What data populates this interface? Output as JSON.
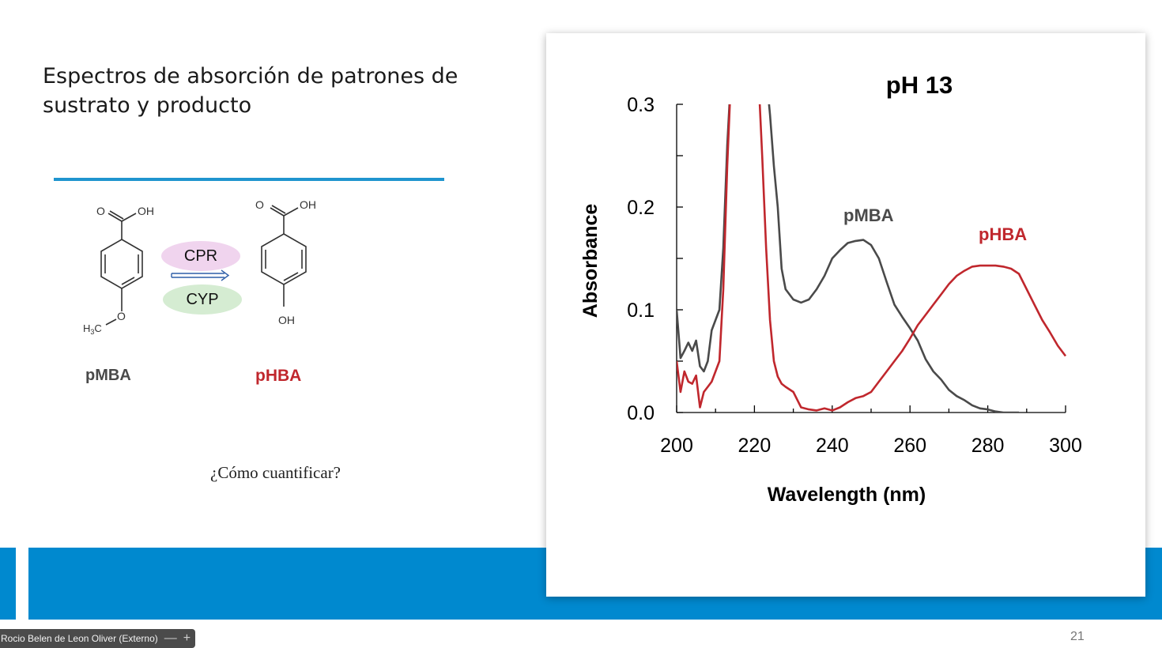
{
  "slide": {
    "title_line1": "Espectros de absorción de patrones de",
    "title_line2": "sustrato y producto",
    "page_number": "21",
    "author": "Rocio Belen de Leon Oliver (Externo)",
    "accent_color": "#0089cf"
  },
  "scheme": {
    "enzyme_top": "CPR",
    "enzyme_bottom": "CYP",
    "substrate_label": "pMBA",
    "product_label": "pHBA",
    "substrate_oh": "OH",
    "substrate_o": "O",
    "substrate_ome_o": "O",
    "product_oh_top": "OH",
    "product_o": "O",
    "product_oh_bottom": "OH",
    "question": "¿Cómo cuantificar?"
  },
  "chart_data": {
    "type": "line",
    "title": "pH 13",
    "xlabel": "Wavelength (nm)",
    "ylabel": "Absorbance",
    "xlim": [
      200,
      300
    ],
    "ylim": [
      0,
      0.3
    ],
    "x_ticks": [
      "200",
      "220",
      "240",
      "260",
      "280",
      "300"
    ],
    "y_ticks": [
      "0.0",
      "0.1",
      "0.2",
      "0.3"
    ],
    "series": [
      {
        "name": "pMBA",
        "color": "#4a4a4a",
        "points": [
          [
            200,
            0.1
          ],
          [
            201,
            0.053
          ],
          [
            202,
            0.06
          ],
          [
            203,
            0.068
          ],
          [
            204,
            0.06
          ],
          [
            205,
            0.07
          ],
          [
            206,
            0.045
          ],
          [
            207,
            0.04
          ],
          [
            208,
            0.05
          ],
          [
            209,
            0.08
          ],
          [
            210,
            0.09
          ],
          [
            211,
            0.1
          ],
          [
            212,
            0.16
          ],
          [
            213,
            0.26
          ],
          [
            214,
            0.33
          ],
          [
            223,
            0.33
          ],
          [
            224,
            0.29
          ],
          [
            225,
            0.24
          ],
          [
            226,
            0.2
          ],
          [
            227,
            0.14
          ],
          [
            228,
            0.12
          ],
          [
            229,
            0.115
          ],
          [
            230,
            0.11
          ],
          [
            232,
            0.107
          ],
          [
            234,
            0.11
          ],
          [
            236,
            0.12
          ],
          [
            238,
            0.133
          ],
          [
            240,
            0.15
          ],
          [
            242,
            0.158
          ],
          [
            244,
            0.165
          ],
          [
            246,
            0.167
          ],
          [
            248,
            0.168
          ],
          [
            250,
            0.163
          ],
          [
            252,
            0.15
          ],
          [
            254,
            0.127
          ],
          [
            256,
            0.105
          ],
          [
            258,
            0.093
          ],
          [
            260,
            0.082
          ],
          [
            262,
            0.07
          ],
          [
            264,
            0.052
          ],
          [
            266,
            0.04
          ],
          [
            268,
            0.032
          ],
          [
            270,
            0.022
          ],
          [
            272,
            0.016
          ],
          [
            274,
            0.012
          ],
          [
            276,
            0.007
          ],
          [
            278,
            0.004
          ],
          [
            280,
            0.003
          ],
          [
            282,
            0.001
          ],
          [
            284,
            0.0
          ],
          [
            286,
            0.0
          ],
          [
            288,
            0.0
          ]
        ]
      },
      {
        "name": "pHBA",
        "color": "#c0272d",
        "points": [
          [
            200,
            0.05
          ],
          [
            201,
            0.02
          ],
          [
            202,
            0.04
          ],
          [
            203,
            0.03
          ],
          [
            204,
            0.028
          ],
          [
            205,
            0.036
          ],
          [
            206,
            0.005
          ],
          [
            207,
            0.02
          ],
          [
            208,
            0.025
          ],
          [
            209,
            0.03
          ],
          [
            210,
            0.04
          ],
          [
            211,
            0.05
          ],
          [
            212,
            0.12
          ],
          [
            213,
            0.24
          ],
          [
            214,
            0.33
          ],
          [
            221,
            0.33
          ],
          [
            222,
            0.25
          ],
          [
            223,
            0.16
          ],
          [
            224,
            0.09
          ],
          [
            225,
            0.05
          ],
          [
            226,
            0.035
          ],
          [
            227,
            0.028
          ],
          [
            228,
            0.025
          ],
          [
            230,
            0.02
          ],
          [
            232,
            0.005
          ],
          [
            234,
            0.003
          ],
          [
            236,
            0.002
          ],
          [
            238,
            0.004
          ],
          [
            240,
            0.002
          ],
          [
            242,
            0.005
          ],
          [
            244,
            0.01
          ],
          [
            246,
            0.014
          ],
          [
            248,
            0.016
          ],
          [
            250,
            0.02
          ],
          [
            252,
            0.03
          ],
          [
            254,
            0.04
          ],
          [
            256,
            0.05
          ],
          [
            258,
            0.06
          ],
          [
            260,
            0.072
          ],
          [
            262,
            0.085
          ],
          [
            264,
            0.095
          ],
          [
            266,
            0.105
          ],
          [
            268,
            0.115
          ],
          [
            270,
            0.125
          ],
          [
            272,
            0.133
          ],
          [
            274,
            0.138
          ],
          [
            276,
            0.142
          ],
          [
            278,
            0.143
          ],
          [
            280,
            0.143
          ],
          [
            282,
            0.143
          ],
          [
            284,
            0.142
          ],
          [
            286,
            0.14
          ],
          [
            288,
            0.135
          ],
          [
            290,
            0.12
          ],
          [
            292,
            0.105
          ],
          [
            294,
            0.09
          ],
          [
            296,
            0.078
          ],
          [
            298,
            0.065
          ],
          [
            300,
            0.055
          ]
        ]
      }
    ],
    "series_labels": {
      "pMBA": "pMBA",
      "pHBA": "pHBA"
    },
    "grid": false
  }
}
